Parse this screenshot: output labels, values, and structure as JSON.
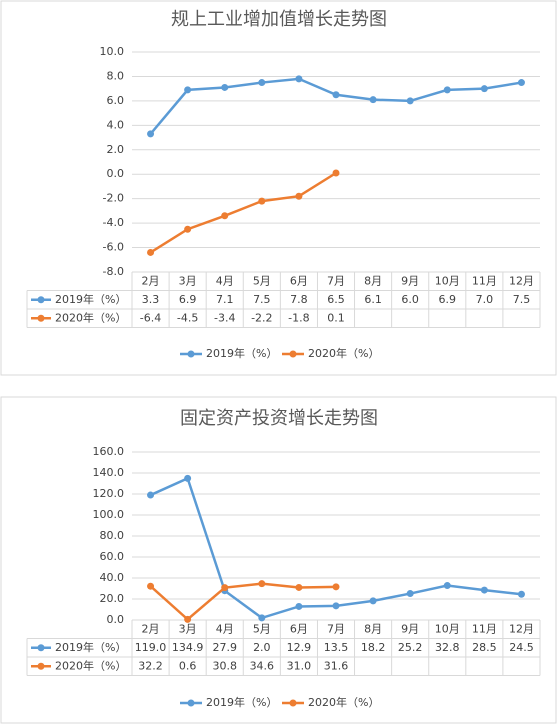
{
  "chart_data": [
    {
      "type": "line",
      "title": "规上工业增加值增长走势图",
      "categories": [
        "2月",
        "3月",
        "4月",
        "5月",
        "6月",
        "7月",
        "8月",
        "9月",
        "10月",
        "11月",
        "12月"
      ],
      "series": [
        {
          "name": "2019年（%）",
          "color": "#5b9bd5",
          "values": [
            3.3,
            6.9,
            7.1,
            7.5,
            7.8,
            6.5,
            6.1,
            6.0,
            6.9,
            7.0,
            7.5
          ],
          "value_labels": [
            "3.3",
            "6.9",
            "7.1",
            "7.5",
            "7.8",
            "6.5",
            "6.1",
            "6.0",
            "6.9",
            "7.0",
            "7.5"
          ]
        },
        {
          "name": "2020年（%）",
          "color": "#ed7d31",
          "values": [
            -6.4,
            -4.5,
            -3.4,
            -2.2,
            -1.8,
            0.1,
            null,
            null,
            null,
            null,
            null
          ],
          "value_labels": [
            "-6.4",
            "-4.5",
            "-3.4",
            "-2.2",
            "-1.8",
            "0.1",
            null,
            null,
            null,
            null,
            null
          ]
        }
      ],
      "ylim": [
        -8,
        10
      ],
      "yticks": [
        {
          "value": -8,
          "label": "-8.0"
        },
        {
          "value": -6,
          "label": "-6.0"
        },
        {
          "value": -4,
          "label": "-4.0"
        },
        {
          "value": -2,
          "label": "-2.0"
        },
        {
          "value": 0,
          "label": "0.0"
        },
        {
          "value": 2,
          "label": "2.0"
        },
        {
          "value": 4,
          "label": "4.0"
        },
        {
          "value": 6,
          "label": "6.0"
        },
        {
          "value": 8,
          "label": "8.0"
        },
        {
          "value": 10,
          "label": "10.0"
        }
      ],
      "grid": true,
      "legend": "bottom"
    },
    {
      "type": "line",
      "title": "固定资产投资增长走势图",
      "categories": [
        "2月",
        "3月",
        "4月",
        "5月",
        "6月",
        "7月",
        "8月",
        "9月",
        "10月",
        "11月",
        "12月"
      ],
      "series": [
        {
          "name": "2019年（%）",
          "color": "#5b9bd5",
          "values": [
            119.0,
            134.9,
            27.9,
            2.0,
            12.9,
            13.5,
            18.2,
            25.2,
            32.8,
            28.5,
            24.5
          ],
          "value_labels": [
            "119.0",
            "134.9",
            "27.9",
            "2.0",
            "12.9",
            "13.5",
            "18.2",
            "25.2",
            "32.8",
            "28.5",
            "24.5"
          ]
        },
        {
          "name": "2020年（%）",
          "color": "#ed7d31",
          "values": [
            32.2,
            0.6,
            30.8,
            34.6,
            31.0,
            31.6,
            null,
            null,
            null,
            null,
            null
          ],
          "value_labels": [
            "32.2",
            "0.6",
            "30.8",
            "34.6",
            "31.0",
            "31.6",
            null,
            null,
            null,
            null,
            null
          ]
        }
      ],
      "ylim": [
        0,
        160
      ],
      "yticks": [
        {
          "value": 0,
          "label": "0.0"
        },
        {
          "value": 20,
          "label": "20.0"
        },
        {
          "value": 40,
          "label": "40.0"
        },
        {
          "value": 60,
          "label": "60.0"
        },
        {
          "value": 80,
          "label": "80.0"
        },
        {
          "value": 100,
          "label": "100.0"
        },
        {
          "value": 120,
          "label": "120.0"
        },
        {
          "value": 140,
          "label": "140.0"
        },
        {
          "value": 160,
          "label": "160.0"
        }
      ],
      "grid": true,
      "legend": "bottom"
    }
  ]
}
